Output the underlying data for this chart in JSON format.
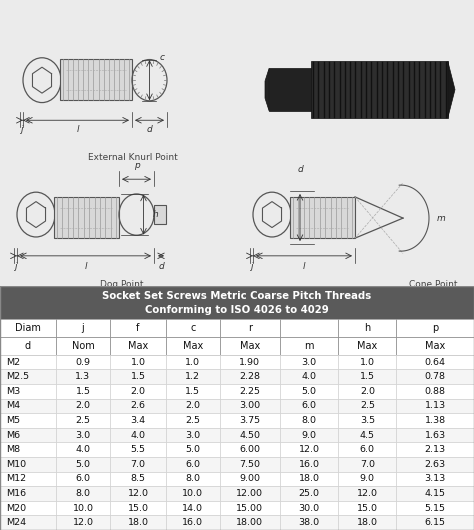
{
  "title_line1": "Socket Set Screws Metric Coarse Pitch Threads",
  "title_line2": "Conforming to ISO 4026 to 4029",
  "header_row1": [
    "Diam",
    "j",
    "f",
    "c",
    "r",
    "",
    "h",
    "p"
  ],
  "header_row2": [
    "d",
    "Nom",
    "Max",
    "Max",
    "Max",
    "m",
    "Max",
    "Max"
  ],
  "rows": [
    [
      "M2",
      "0.9",
      "1.0",
      "1.0",
      "1.90",
      "3.0",
      "1.0",
      "0.64"
    ],
    [
      "M2.5",
      "1.3",
      "1.5",
      "1.2",
      "2.28",
      "4.0",
      "1.5",
      "0.78"
    ],
    [
      "M3",
      "1.5",
      "2.0",
      "1.5",
      "2.25",
      "5.0",
      "2.0",
      "0.88"
    ],
    [
      "M4",
      "2.0",
      "2.6",
      "2.0",
      "3.00",
      "6.0",
      "2.5",
      "1.13"
    ],
    [
      "M5",
      "2.5",
      "3.4",
      "2.5",
      "3.75",
      "8.0",
      "3.5",
      "1.38"
    ],
    [
      "M6",
      "3.0",
      "4.0",
      "3.0",
      "4.50",
      "9.0",
      "4.5",
      "1.63"
    ],
    [
      "M8",
      "4.0",
      "5.5",
      "5.0",
      "6.00",
      "12.0",
      "6.0",
      "2.13"
    ],
    [
      "M10",
      "5.0",
      "7.0",
      "6.0",
      "7.50",
      "16.0",
      "7.0",
      "2.63"
    ],
    [
      "M12",
      "6.0",
      "8.5",
      "8.0",
      "9.00",
      "18.0",
      "9.0",
      "3.13"
    ],
    [
      "M16",
      "8.0",
      "12.0",
      "10.0",
      "12.00",
      "25.0",
      "12.0",
      "4.15"
    ],
    [
      "M20",
      "10.0",
      "15.0",
      "14.0",
      "15.00",
      "30.0",
      "15.0",
      "5.15"
    ],
    [
      "M24",
      "12.0",
      "18.0",
      "16.0",
      "18.00",
      "38.0",
      "18.0",
      "6.15"
    ]
  ],
  "header_bg": "#5a5a5a",
  "header_fg": "#ffffff",
  "table_bg_even": "#ffffff",
  "table_bg_odd": "#f5f5f5",
  "drawing_bg": "#ebebeb",
  "caption_ext": "External Knurl Point",
  "caption_dog": "Dog Point",
  "caption_cone": "Cone Point"
}
